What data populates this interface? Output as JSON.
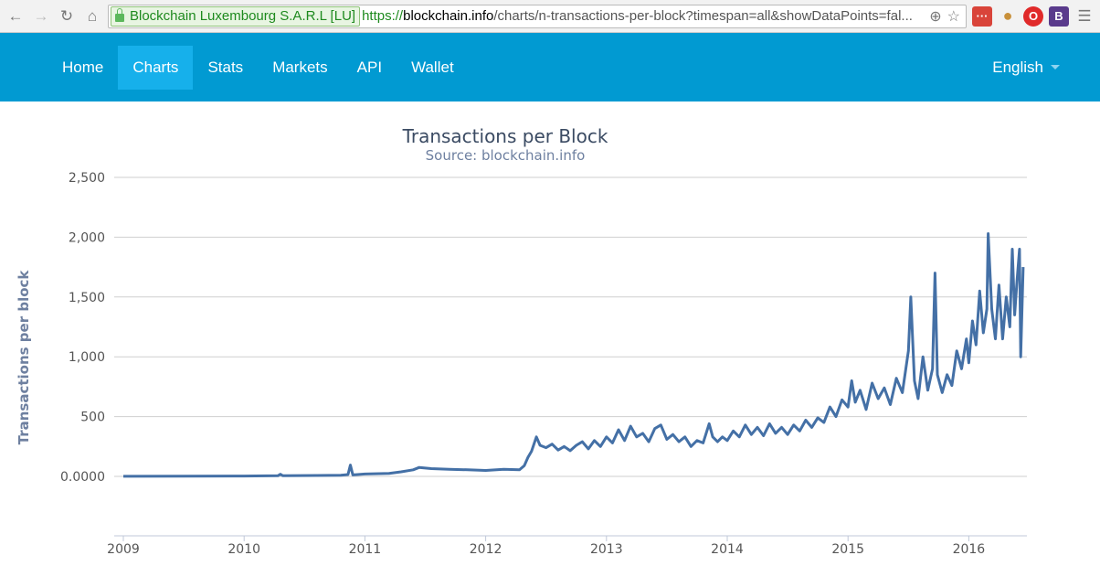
{
  "browser": {
    "ev_label": "Blockchain Luxembourg S.A.R.L [LU]",
    "url_scheme": "https://",
    "url_host": "blockchain.info",
    "url_path": "/charts/n-transactions-per-block?timespan=all&showDataPoints=fal..."
  },
  "nav": {
    "items": [
      "Home",
      "Charts",
      "Stats",
      "Markets",
      "API",
      "Wallet"
    ],
    "active": "Charts",
    "language": "English"
  },
  "colors": {
    "nav": "#019ad2",
    "line": "#4470a6"
  },
  "chart_data": {
    "type": "line",
    "title": "Transactions per Block",
    "subtitle": "Source: blockchain.info",
    "ylabel": "Transactions per block",
    "xlabel": "",
    "ylim": [
      -500,
      2500
    ],
    "xlim": [
      2009,
      2016.5
    ],
    "y_ticks": [
      {
        "v": 2500,
        "label": "2,500"
      },
      {
        "v": 2000,
        "label": "2,000"
      },
      {
        "v": 1500,
        "label": "1,500"
      },
      {
        "v": 1000,
        "label": "1,000"
      },
      {
        "v": 500,
        "label": "500"
      },
      {
        "v": 0,
        "label": "0.0000"
      }
    ],
    "x_ticks": [
      "2009",
      "2010",
      "2011",
      "2012",
      "2013",
      "2014",
      "2015",
      "2016"
    ],
    "grid": true,
    "series": [
      {
        "name": "Transactions per block",
        "points": [
          [
            2009.0,
            1
          ],
          [
            2009.5,
            2
          ],
          [
            2010.0,
            3
          ],
          [
            2010.28,
            5
          ],
          [
            2010.3,
            18
          ],
          [
            2010.32,
            5
          ],
          [
            2010.6,
            8
          ],
          [
            2010.8,
            10
          ],
          [
            2010.86,
            15
          ],
          [
            2010.88,
            95
          ],
          [
            2010.9,
            12
          ],
          [
            2011.0,
            20
          ],
          [
            2011.2,
            25
          ],
          [
            2011.3,
            38
          ],
          [
            2011.4,
            55
          ],
          [
            2011.45,
            75
          ],
          [
            2011.55,
            65
          ],
          [
            2011.7,
            60
          ],
          [
            2011.85,
            55
          ],
          [
            2012.0,
            50
          ],
          [
            2012.15,
            60
          ],
          [
            2012.28,
            55
          ],
          [
            2012.32,
            90
          ],
          [
            2012.35,
            160
          ],
          [
            2012.38,
            210
          ],
          [
            2012.42,
            330
          ],
          [
            2012.45,
            260
          ],
          [
            2012.5,
            240
          ],
          [
            2012.55,
            270
          ],
          [
            2012.6,
            220
          ],
          [
            2012.65,
            250
          ],
          [
            2012.7,
            215
          ],
          [
            2012.75,
            260
          ],
          [
            2012.8,
            290
          ],
          [
            2012.85,
            230
          ],
          [
            2012.9,
            300
          ],
          [
            2012.95,
            250
          ],
          [
            2013.0,
            330
          ],
          [
            2013.05,
            280
          ],
          [
            2013.1,
            390
          ],
          [
            2013.15,
            300
          ],
          [
            2013.2,
            420
          ],
          [
            2013.25,
            330
          ],
          [
            2013.3,
            360
          ],
          [
            2013.35,
            290
          ],
          [
            2013.4,
            400
          ],
          [
            2013.45,
            430
          ],
          [
            2013.5,
            310
          ],
          [
            2013.55,
            350
          ],
          [
            2013.6,
            290
          ],
          [
            2013.65,
            330
          ],
          [
            2013.7,
            250
          ],
          [
            2013.75,
            300
          ],
          [
            2013.8,
            280
          ],
          [
            2013.85,
            440
          ],
          [
            2013.88,
            330
          ],
          [
            2013.92,
            290
          ],
          [
            2013.96,
            330
          ],
          [
            2014.0,
            300
          ],
          [
            2014.05,
            380
          ],
          [
            2014.1,
            330
          ],
          [
            2014.15,
            430
          ],
          [
            2014.2,
            350
          ],
          [
            2014.25,
            410
          ],
          [
            2014.3,
            340
          ],
          [
            2014.35,
            440
          ],
          [
            2014.4,
            360
          ],
          [
            2014.45,
            410
          ],
          [
            2014.5,
            350
          ],
          [
            2014.55,
            430
          ],
          [
            2014.6,
            380
          ],
          [
            2014.65,
            470
          ],
          [
            2014.7,
            410
          ],
          [
            2014.75,
            490
          ],
          [
            2014.8,
            450
          ],
          [
            2014.85,
            580
          ],
          [
            2014.9,
            500
          ],
          [
            2014.95,
            640
          ],
          [
            2015.0,
            580
          ],
          [
            2015.03,
            800
          ],
          [
            2015.06,
            620
          ],
          [
            2015.1,
            720
          ],
          [
            2015.15,
            560
          ],
          [
            2015.2,
            780
          ],
          [
            2015.25,
            650
          ],
          [
            2015.3,
            740
          ],
          [
            2015.35,
            600
          ],
          [
            2015.4,
            820
          ],
          [
            2015.45,
            700
          ],
          [
            2015.5,
            1050
          ],
          [
            2015.52,
            1500
          ],
          [
            2015.55,
            800
          ],
          [
            2015.58,
            650
          ],
          [
            2015.62,
            1000
          ],
          [
            2015.66,
            720
          ],
          [
            2015.7,
            900
          ],
          [
            2015.72,
            1700
          ],
          [
            2015.74,
            850
          ],
          [
            2015.78,
            700
          ],
          [
            2015.82,
            850
          ],
          [
            2015.86,
            760
          ],
          [
            2015.9,
            1050
          ],
          [
            2015.94,
            900
          ],
          [
            2015.98,
            1150
          ],
          [
            2016.0,
            950
          ],
          [
            2016.03,
            1300
          ],
          [
            2016.06,
            1100
          ],
          [
            2016.09,
            1550
          ],
          [
            2016.12,
            1200
          ],
          [
            2016.15,
            1400
          ],
          [
            2016.16,
            2030
          ],
          [
            2016.19,
            1400
          ],
          [
            2016.22,
            1150
          ],
          [
            2016.25,
            1600
          ],
          [
            2016.28,
            1150
          ],
          [
            2016.31,
            1500
          ],
          [
            2016.34,
            1250
          ],
          [
            2016.36,
            1900
          ],
          [
            2016.38,
            1350
          ],
          [
            2016.4,
            1650
          ],
          [
            2016.42,
            1900
          ],
          [
            2016.43,
            1000
          ],
          [
            2016.45,
            1750
          ]
        ]
      }
    ]
  }
}
